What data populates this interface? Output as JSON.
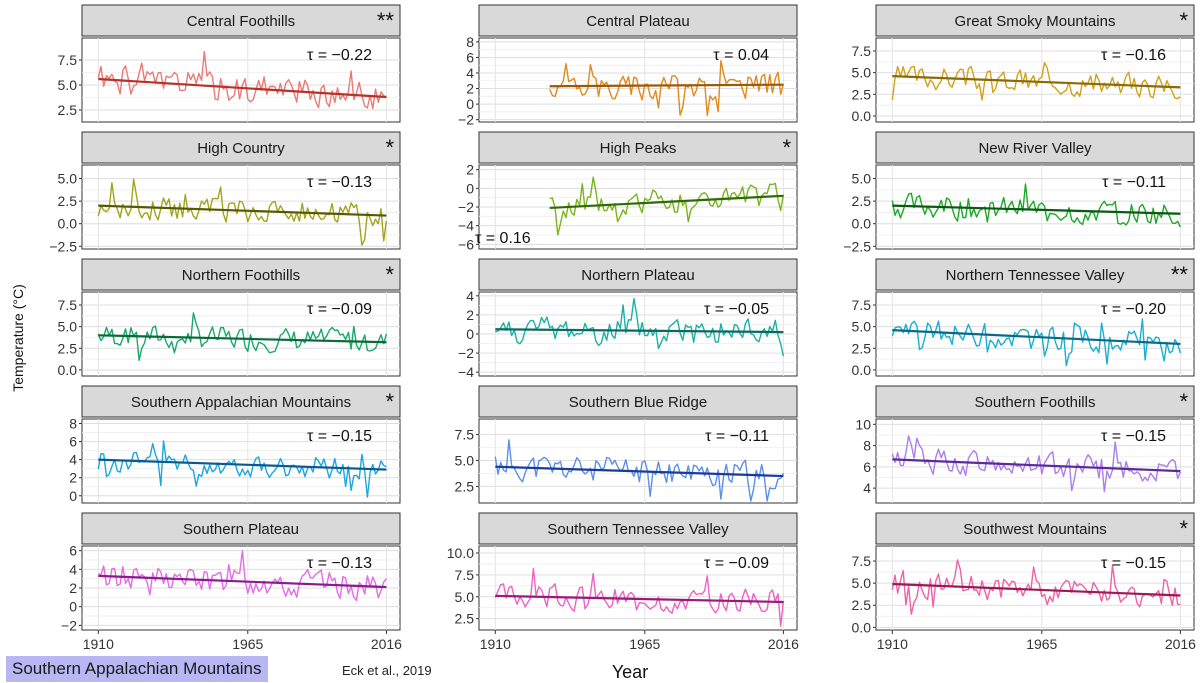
{
  "chart_data": {
    "type": "line",
    "y_axis_label": "Temperature (°C)",
    "x_axis_label": "Year",
    "x_ticks": [
      1910,
      1965,
      2016
    ],
    "panels": [
      {
        "title": "Central Foothills",
        "sig": "**",
        "tau": "τ = −0.22",
        "color": "#ec7a74",
        "trend_color": "#b3322e",
        "x_range": [
          1910,
          2016
        ],
        "y_range": [
          1.3,
          9.7
        ],
        "y_ticks": [
          2.5,
          5.0,
          7.5
        ],
        "tick_decimals": 1,
        "trend": [
          5.6,
          3.8
        ],
        "mean": 4.7,
        "amp": 1.8,
        "seed": 1
      },
      {
        "title": "Central Plateau",
        "sig": "",
        "tau": "τ = 0.04",
        "color": "#e08a1c",
        "trend_color": "#9a5a08",
        "x_range": [
          1930,
          2016
        ],
        "y_range": [
          -2.3,
          8.5
        ],
        "y_ticks": [
          -2,
          0,
          2,
          4,
          6,
          8
        ],
        "tick_decimals": 0,
        "trend": [
          2.3,
          2.5
        ],
        "mean": 2.4,
        "amp": 2.2,
        "seed": 2
      },
      {
        "title": "Great Smoky Mountains",
        "sig": "*",
        "tau": "τ = −0.16",
        "color": "#d0a21a",
        "trend_color": "#8a6a08",
        "x_range": [
          1910,
          2016
        ],
        "y_range": [
          -0.7,
          9.0
        ],
        "y_ticks": [
          0.0,
          2.5,
          5.0,
          7.5
        ],
        "tick_decimals": 1,
        "trend": [
          4.6,
          3.3
        ],
        "mean": 4.0,
        "amp": 1.7,
        "seed": 3
      },
      {
        "title": "High Country",
        "sig": "*",
        "tau": "τ = −0.13",
        "color": "#a3a41c",
        "trend_color": "#555a00",
        "x_range": [
          1910,
          2016
        ],
        "y_range": [
          -2.8,
          6.5
        ],
        "y_ticks": [
          -2.5,
          0.0,
          2.5,
          5.0
        ],
        "tick_decimals": 1,
        "trend": [
          2.0,
          0.9
        ],
        "mean": 1.5,
        "amp": 1.7,
        "seed": 4
      },
      {
        "title": "High Peaks",
        "sig": "*",
        "tau": "τ = 0.16",
        "color": "#7ab51d",
        "trend_color": "#2f6a08",
        "x_range": [
          1930,
          2016
        ],
        "y_range": [
          -6.5,
          2.5
        ],
        "y_ticks": [
          -6,
          -4,
          -2,
          0,
          2
        ],
        "tick_decimals": 0,
        "trend": [
          -2.1,
          -0.8
        ],
        "mean": -1.5,
        "amp": 1.7,
        "seed": 5
      },
      {
        "title": "New River Valley",
        "sig": "",
        "tau": "τ = −0.11",
        "color": "#1ea82a",
        "trend_color": "#0a5a14",
        "x_range": [
          1910,
          2016
        ],
        "y_range": [
          -2.8,
          6.5
        ],
        "y_ticks": [
          -2.5,
          0.0,
          2.5,
          5.0
        ],
        "tick_decimals": 1,
        "trend": [
          2.0,
          1.1
        ],
        "mean": 1.5,
        "amp": 1.7,
        "seed": 6
      },
      {
        "title": "Northern Foothills",
        "sig": "*",
        "tau": "τ = −0.09",
        "color": "#1aa86a",
        "trend_color": "#0a6a3a",
        "x_range": [
          1910,
          2016
        ],
        "y_range": [
          -0.7,
          9.0
        ],
        "y_ticks": [
          0.0,
          2.5,
          5.0,
          7.5
        ],
        "tick_decimals": 1,
        "trend": [
          4.0,
          3.2
        ],
        "mean": 3.6,
        "amp": 1.7,
        "seed": 7
      },
      {
        "title": "Northern Plateau",
        "sig": "",
        "tau": "τ = −0.05",
        "color": "#1db0a6",
        "trend_color": "#0a6a62",
        "x_range": [
          1910,
          2016
        ],
        "y_range": [
          -4.4,
          4.4
        ],
        "y_ticks": [
          -4,
          -2,
          0,
          2,
          4
        ],
        "tick_decimals": 0,
        "trend": [
          0.5,
          0.2
        ],
        "mean": 0.3,
        "amp": 1.8,
        "seed": 8
      },
      {
        "title": "Northern Tennessee Valley",
        "sig": "**",
        "tau": "τ = −0.20",
        "color": "#1aaed0",
        "trend_color": "#0a6a86",
        "x_range": [
          1910,
          2016
        ],
        "y_range": [
          -0.7,
          9.0
        ],
        "y_ticks": [
          0.0,
          2.5,
          5.0,
          7.5
        ],
        "tick_decimals": 1,
        "trend": [
          4.6,
          3.0
        ],
        "mean": 3.8,
        "amp": 1.7,
        "seed": 9
      },
      {
        "title": "Southern Appalachian Mountains",
        "sig": "*",
        "tau": "τ = −0.15",
        "color": "#1ca6e0",
        "trend_color": "#0a5a90",
        "x_range": [
          1910,
          2016
        ],
        "y_range": [
          -0.8,
          8.5
        ],
        "y_ticks": [
          0,
          2,
          4,
          6,
          8
        ],
        "tick_decimals": 0,
        "trend": [
          4.0,
          2.9
        ],
        "mean": 3.5,
        "amp": 1.6,
        "seed": 10
      },
      {
        "title": "Southern Blue Ridge",
        "sig": "",
        "tau": "τ = −0.11",
        "color": "#5b8fe8",
        "trend_color": "#1c3a9a",
        "x_range": [
          1910,
          2016
        ],
        "y_range": [
          0.9,
          9.0
        ],
        "y_ticks": [
          2.5,
          5.0,
          7.5
        ],
        "tick_decimals": 1,
        "trend": [
          4.4,
          3.5
        ],
        "mean": 4.0,
        "amp": 1.6,
        "seed": 11
      },
      {
        "title": "Southern Foothills",
        "sig": "*",
        "tau": "τ = −0.15",
        "color": "#ac7ee8",
        "trend_color": "#5a2a9a",
        "x_range": [
          1910,
          2016
        ],
        "y_range": [
          2.6,
          10.5
        ],
        "y_ticks": [
          4,
          6,
          8,
          10
        ],
        "tick_decimals": 0,
        "trend": [
          6.7,
          5.6
        ],
        "mean": 6.1,
        "amp": 1.5,
        "seed": 12
      },
      {
        "title": "Southern Plateau",
        "sig": "",
        "tau": "τ = −0.13",
        "color": "#e46ce6",
        "trend_color": "#8a1a8e",
        "x_range": [
          1910,
          2016
        ],
        "y_range": [
          -2.5,
          6.5
        ],
        "y_ticks": [
          -2,
          0,
          2,
          4,
          6
        ],
        "tick_decimals": 0,
        "trend": [
          3.3,
          2.1
        ],
        "mean": 2.7,
        "amp": 1.8,
        "seed": 13
      },
      {
        "title": "Southern Tennessee Valley",
        "sig": "",
        "tau": "τ = −0.09",
        "color": "#ee62c6",
        "trend_color": "#9a1a76",
        "x_range": [
          1910,
          2016
        ],
        "y_range": [
          1.2,
          10.8
        ],
        "y_ticks": [
          2.5,
          5.0,
          7.5,
          10.0
        ],
        "tick_decimals": 1,
        "trend": [
          5.1,
          4.4
        ],
        "mean": 4.8,
        "amp": 1.7,
        "seed": 14
      },
      {
        "title": "Southwest Mountains",
        "sig": "*",
        "tau": "τ = −0.15",
        "color": "#ee62a6",
        "trend_color": "#9a1a56",
        "x_range": [
          1910,
          2016
        ],
        "y_range": [
          -0.3,
          9.2
        ],
        "y_ticks": [
          0.0,
          2.5,
          5.0,
          7.5
        ],
        "tick_decimals": 1,
        "trend": [
          4.9,
          3.6
        ],
        "mean": 4.2,
        "amp": 1.7,
        "seed": 15
      }
    ]
  },
  "footer": {
    "region_badge": "Southern Appalachian Mountains",
    "citation": "Eck et al., 2019"
  }
}
